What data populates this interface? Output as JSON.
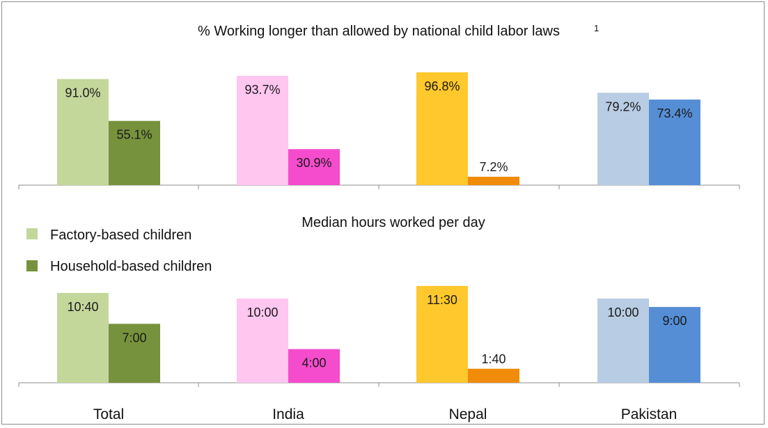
{
  "legend": {
    "factory_label": "Factory-based children",
    "household_label": "Household-based children"
  },
  "chart_data": [
    {
      "type": "bar",
      "title": "% Working longer than allowed by national child labor laws",
      "title_footnote": "1",
      "categories": [
        "Total",
        "India",
        "Nepal",
        "Pakistan"
      ],
      "series": [
        {
          "name": "Factory-based children",
          "values": [
            91.0,
            93.7,
            96.8,
            79.2
          ],
          "labels": [
            "91.0%",
            "93.7%",
            "96.8%",
            "79.2%"
          ]
        },
        {
          "name": "Household-based children",
          "values": [
            55.1,
            30.9,
            7.2,
            73.4
          ],
          "labels": [
            "55.1%",
            "30.9%",
            "7.2%",
            "73.4%"
          ]
        }
      ],
      "ylim": [
        0,
        100
      ],
      "colors": {
        "factory": [
          "#c4d79b",
          "#ffc6ef",
          "#ffc82c",
          "#b8cce4"
        ],
        "household": [
          "#76923c",
          "#f54ccd",
          "#f08c0a",
          "#558ed5"
        ]
      },
      "grid": false
    },
    {
      "type": "bar",
      "title": "Median hours worked per day",
      "categories": [
        "Total",
        "India",
        "Nepal",
        "Pakistan"
      ],
      "series": [
        {
          "name": "Factory-based children",
          "values": [
            10.667,
            10.0,
            11.5,
            10.0
          ],
          "labels": [
            "10:40",
            "10:00",
            "11:30",
            "10:00"
          ]
        },
        {
          "name": "Household-based children",
          "values": [
            7.0,
            4.0,
            1.667,
            9.0
          ],
          "labels": [
            "7:00",
            "4:00",
            "1:40",
            "9:00"
          ]
        }
      ],
      "ylim": [
        0,
        12
      ],
      "colors": {
        "factory": [
          "#c4d79b",
          "#ffc6ef",
          "#ffc82c",
          "#b8cce4"
        ],
        "household": [
          "#76923c",
          "#f54ccd",
          "#f08c0a",
          "#558ed5"
        ]
      },
      "grid": false
    }
  ]
}
